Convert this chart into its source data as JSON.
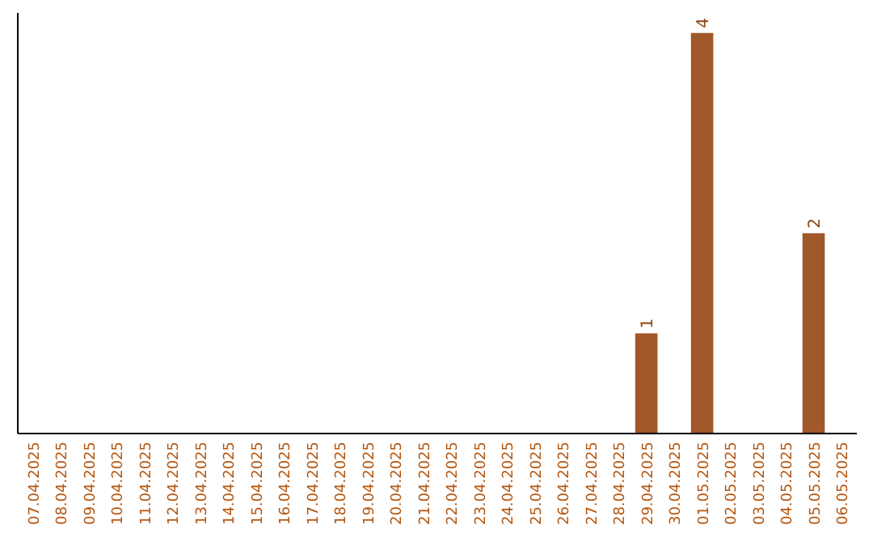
{
  "chart_data": {
    "type": "bar",
    "categories": [
      "07.04.2025",
      "08.04.2025",
      "09.04.2025",
      "10.04.2025",
      "11.04.2025",
      "12.04.2025",
      "13.04.2025",
      "14.04.2025",
      "15.04.2025",
      "16.04.2025",
      "17.04.2025",
      "18.04.2025",
      "19.04.2025",
      "20.04.2025",
      "21.04.2025",
      "22.04.2025",
      "23.04.2025",
      "24.04.2025",
      "25.04.2025",
      "26.04.2025",
      "27.04.2025",
      "28.04.2025",
      "29.04.2025",
      "30.04.2025",
      "01.05.2025",
      "02.05.2025",
      "03.05.2025",
      "04.05.2025",
      "05.05.2025",
      "06.05.2025"
    ],
    "values": [
      null,
      null,
      null,
      null,
      null,
      null,
      null,
      null,
      null,
      null,
      null,
      null,
      null,
      null,
      null,
      null,
      null,
      null,
      null,
      null,
      null,
      null,
      1,
      null,
      4,
      null,
      null,
      null,
      2,
      null
    ],
    "data_labels": true,
    "color": "#a0572a",
    "ylim": [
      0,
      4.2
    ],
    "tick_labels": "x",
    "grid": false
  }
}
